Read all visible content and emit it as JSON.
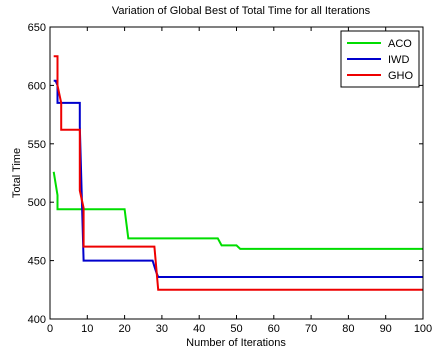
{
  "chart_data": {
    "type": "line",
    "title": "Variation of Global Best of Total Time for all Iterations",
    "xlabel": "Number of Iterations",
    "ylabel": "Total Time",
    "xlim": [
      0,
      100
    ],
    "ylim": [
      400,
      650
    ],
    "xticks": [
      0,
      10,
      20,
      30,
      40,
      50,
      60,
      70,
      80,
      90,
      100
    ],
    "yticks": [
      400,
      450,
      500,
      550,
      600,
      650
    ],
    "grid": false,
    "legend_position": "top-right",
    "series": [
      {
        "name": "ACO",
        "color": "#00dd00",
        "x": [
          1,
          2,
          2,
          20,
          21,
          45,
          46,
          50,
          51,
          100
        ],
        "y": [
          526,
          506,
          494,
          494,
          469,
          469,
          463,
          463,
          460,
          460
        ]
      },
      {
        "name": "IWD",
        "color": "#0000cc",
        "x": [
          1,
          1.5,
          2,
          2,
          8,
          8,
          9,
          27.5,
          28,
          28.5,
          29,
          100
        ],
        "y": [
          604,
          604,
          600,
          585,
          585,
          565,
          450,
          450,
          445,
          440,
          436,
          436
        ]
      },
      {
        "name": "GHO",
        "color": "#ee0000",
        "x": [
          1,
          2,
          2,
          3,
          3,
          8,
          8,
          9,
          9,
          28,
          29,
          100
        ],
        "y": [
          625,
          625,
          600,
          585,
          562,
          562,
          510,
          495,
          462,
          462,
          425,
          425
        ]
      }
    ]
  }
}
